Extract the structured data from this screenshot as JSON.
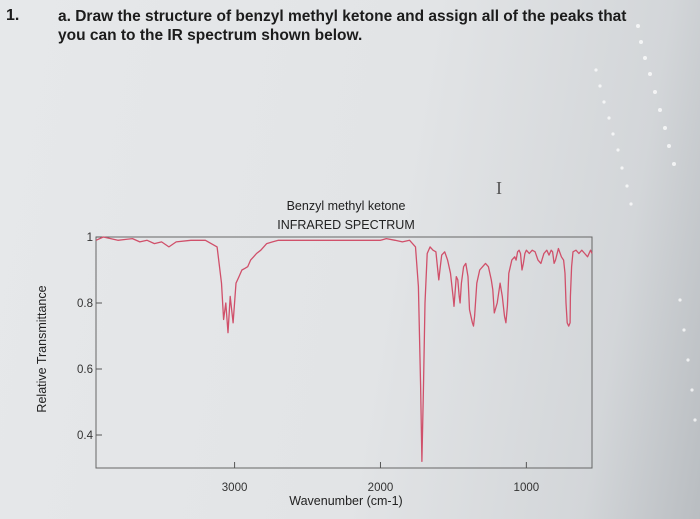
{
  "question": {
    "number": "1.",
    "line1": "a. Draw the structure of benzyl methyl ketone and assign all of the peaks that",
    "line2": "you can to the IR spectrum shown below."
  },
  "cursor_glyph": "I",
  "colors": {
    "spectrum": "#d0506a",
    "axis": "#555555"
  },
  "chart_data": {
    "type": "line",
    "title": "Benzyl methyl ketone",
    "subtitle": "INFRARED SPECTRUM",
    "xlabel": "Wavenumber (cm-1)",
    "ylabel": "Relative Transmittance",
    "xlim": [
      3950,
      550
    ],
    "ylim": [
      0.3,
      1.0
    ],
    "x_ticks": [
      3000,
      2000,
      1000
    ],
    "x_tick_labels": [
      "3000",
      "2000",
      "1000"
    ],
    "y_ticks": [
      1.0,
      0.8,
      0.6,
      0.4
    ],
    "y_tick_labels": [
      "1",
      "0.8",
      "0.6",
      "0.4"
    ],
    "grid": false,
    "series": [
      {
        "x": [
          3950,
          3900,
          3800,
          3700,
          3650,
          3600,
          3550,
          3500,
          3450,
          3400,
          3300,
          3200,
          3120,
          3090,
          3075,
          3060,
          3045,
          3030,
          3010,
          2990,
          2970,
          2950,
          2930,
          2910,
          2890,
          2870,
          2850,
          2820,
          2780,
          2740,
          2700,
          2650,
          2600,
          2500,
          2400,
          2300,
          2200,
          2100,
          2000,
          1960,
          1900,
          1850,
          1800,
          1760,
          1740,
          1725,
          1716,
          1705,
          1695,
          1680,
          1660,
          1640,
          1620,
          1605,
          1600,
          1590,
          1580,
          1560,
          1540,
          1520,
          1500,
          1496,
          1480,
          1470,
          1460,
          1454,
          1445,
          1430,
          1415,
          1400,
          1390,
          1370,
          1362,
          1355,
          1340,
          1320,
          1300,
          1280,
          1260,
          1240,
          1230,
          1220,
          1200,
          1180,
          1165,
          1150,
          1140,
          1130,
          1120,
          1100,
          1080,
          1070,
          1060,
          1050,
          1040,
          1030,
          1020,
          1010,
          1000,
          990,
          980,
          960,
          940,
          920,
          900,
          880,
          860,
          845,
          830,
          820,
          810,
          800,
          780,
          760,
          745,
          735,
          728,
          720,
          710,
          700,
          698,
          690,
          680,
          660,
          640,
          620,
          600,
          580,
          560,
          550
        ],
        "y": [
          0.99,
          1.0,
          0.99,
          0.995,
          0.985,
          0.99,
          0.98,
          0.985,
          0.97,
          0.985,
          0.99,
          0.99,
          0.97,
          0.86,
          0.75,
          0.8,
          0.71,
          0.82,
          0.74,
          0.86,
          0.88,
          0.9,
          0.905,
          0.91,
          0.93,
          0.94,
          0.95,
          0.96,
          0.98,
          0.985,
          0.99,
          0.99,
          0.99,
          0.99,
          0.99,
          0.99,
          0.99,
          0.99,
          0.99,
          0.995,
          0.99,
          0.985,
          0.99,
          0.97,
          0.85,
          0.55,
          0.32,
          0.55,
          0.8,
          0.95,
          0.97,
          0.96,
          0.955,
          0.89,
          0.87,
          0.91,
          0.945,
          0.955,
          0.93,
          0.89,
          0.81,
          0.79,
          0.88,
          0.87,
          0.82,
          0.8,
          0.86,
          0.91,
          0.92,
          0.88,
          0.78,
          0.74,
          0.73,
          0.76,
          0.86,
          0.9,
          0.91,
          0.92,
          0.91,
          0.87,
          0.84,
          0.77,
          0.8,
          0.86,
          0.82,
          0.76,
          0.74,
          0.79,
          0.89,
          0.93,
          0.94,
          0.93,
          0.955,
          0.96,
          0.95,
          0.9,
          0.92,
          0.95,
          0.96,
          0.955,
          0.95,
          0.96,
          0.955,
          0.93,
          0.92,
          0.95,
          0.96,
          0.945,
          0.96,
          0.955,
          0.92,
          0.93,
          0.965,
          0.94,
          0.93,
          0.89,
          0.8,
          0.74,
          0.73,
          0.74,
          0.82,
          0.91,
          0.955,
          0.96,
          0.95,
          0.96,
          0.95,
          0.94,
          0.96,
          0.95
        ]
      }
    ]
  }
}
